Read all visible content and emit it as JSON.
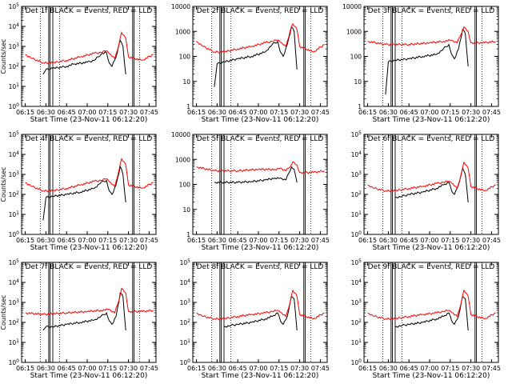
{
  "figure": {
    "ylabel": "Counts/sec",
    "xlabel_template": "Start Time (23-Nov-11 06:12:20)",
    "colors": {
      "events": "#000000",
      "lld": "#ff0000",
      "axes": "#000000"
    }
  },
  "chart_data": [
    {
      "type": "line",
      "title": "Det 1f BLACK = Events, RED = LLD",
      "xlabel": "Start Time (23-Nov-11 06:12:20)",
      "ylabel": "Counts/sec",
      "x_tick_labels": [
        "06:15",
        "06:30",
        "06:45",
        "07:00",
        "07:15",
        "07:30",
        "07:45"
      ],
      "y_tick_labels": [
        "10^0",
        "10^1",
        "10^2",
        "10^3",
        "10^4",
        "10^5"
      ],
      "ylim": [
        1,
        100000
      ],
      "yscale": "log",
      "series": [
        {
          "name": "Events",
          "color": "#000000",
          "x": [
            "06:28",
            "06:30",
            "06:32",
            "06:35",
            "06:45",
            "06:50",
            "07:00",
            "07:05",
            "07:10",
            "07:14",
            "07:16",
            "07:18",
            "07:21",
            "07:24",
            "07:26",
            "07:28"
          ],
          "y": [
            40,
            70,
            70,
            80,
            100,
            130,
            160,
            200,
            400,
            500,
            150,
            100,
            300,
            2000,
            1000,
            40
          ]
        },
        {
          "name": "LLD",
          "color": "#ff0000",
          "x": [
            "06:15",
            "06:20",
            "06:28",
            "06:35",
            "06:45",
            "06:55",
            "07:05",
            "07:10",
            "07:14",
            "07:17",
            "07:20",
            "07:23",
            "07:25",
            "07:28",
            "07:30",
            "07:40",
            "07:48"
          ],
          "y": [
            400,
            250,
            150,
            150,
            200,
            300,
            450,
            500,
            600,
            400,
            250,
            1200,
            5000,
            2500,
            300,
            200,
            400
          ]
        }
      ]
    },
    {
      "type": "line",
      "title": "Det 2f BLACK = Events, RED = LLD",
      "xlabel": "Start Time (23-Nov-11 06:12:20)",
      "ylabel": "Counts/sec",
      "x_tick_labels": [
        "06:15",
        "06:30",
        "06:45",
        "07:00",
        "07:15",
        "07:30",
        "07:45"
      ],
      "y_tick_labels": [
        "1",
        "10",
        "100",
        "1000",
        "10000"
      ],
      "ylim": [
        1,
        10000
      ],
      "yscale": "log",
      "series": [
        {
          "name": "Events",
          "color": "#000000",
          "x": [
            "06:28",
            "06:30",
            "06:35",
            "06:45",
            "06:55",
            "07:05",
            "07:10",
            "07:14",
            "07:16",
            "07:18",
            "07:21",
            "07:24",
            "07:26",
            "07:28"
          ],
          "y": [
            6,
            50,
            60,
            80,
            100,
            150,
            300,
            400,
            150,
            100,
            300,
            1500,
            1000,
            30
          ]
        },
        {
          "name": "LLD",
          "color": "#ff0000",
          "x": [
            "06:15",
            "06:20",
            "06:28",
            "06:35",
            "06:45",
            "06:55",
            "07:05",
            "07:10",
            "07:14",
            "07:17",
            "07:20",
            "07:23",
            "07:25",
            "07:28",
            "07:30",
            "07:40",
            "07:48"
          ],
          "y": [
            400,
            250,
            150,
            150,
            200,
            250,
            350,
            400,
            450,
            350,
            250,
            1000,
            2000,
            1200,
            250,
            150,
            300
          ]
        }
      ]
    },
    {
      "type": "line",
      "title": "Det 3f BLACK = Events, RED = LLD",
      "xlabel": "Start Time (23-Nov-11 06:12:20)",
      "ylabel": "Counts/sec",
      "x_tick_labels": [
        "06:15",
        "06:30",
        "06:45",
        "07:00",
        "07:15",
        "07:30",
        "07:45"
      ],
      "y_tick_labels": [
        "1",
        "10",
        "100",
        "1000",
        "10000"
      ],
      "ylim": [
        1,
        10000
      ],
      "yscale": "log",
      "series": [
        {
          "name": "Events",
          "color": "#000000",
          "x": [
            "06:28",
            "06:30",
            "06:35",
            "06:45",
            "06:55",
            "07:05",
            "07:10",
            "07:14",
            "07:16",
            "07:18",
            "07:21",
            "07:24",
            "07:26",
            "07:28"
          ],
          "y": [
            3,
            60,
            70,
            80,
            100,
            120,
            200,
            300,
            120,
            80,
            200,
            1200,
            800,
            40
          ]
        },
        {
          "name": "LLD",
          "color": "#ff0000",
          "x": [
            "06:15",
            "06:28",
            "06:45",
            "07:00",
            "07:10",
            "07:16",
            "07:20",
            "07:23",
            "07:25",
            "07:28",
            "07:30",
            "07:40",
            "07:48"
          ],
          "y": [
            400,
            300,
            300,
            350,
            400,
            450,
            350,
            800,
            1500,
            1000,
            350,
            350,
            400
          ]
        }
      ]
    },
    {
      "type": "line",
      "title": "Det 4f BLACK = Events, RED = LLD",
      "xlabel": "Start Time (23-Nov-11 06:12:20)",
      "ylabel": "Counts/sec",
      "x_tick_labels": [
        "06:15",
        "06:30",
        "06:45",
        "07:00",
        "07:15",
        "07:30",
        "07:45"
      ],
      "y_tick_labels": [
        "10^0",
        "10^1",
        "10^2",
        "10^3",
        "10^4",
        "10^5"
      ],
      "ylim": [
        1,
        100000
      ],
      "yscale": "log",
      "series": [
        {
          "name": "Events",
          "color": "#000000",
          "x": [
            "06:28",
            "06:30",
            "06:35",
            "06:45",
            "06:55",
            "07:05",
            "07:10",
            "07:14",
            "07:16",
            "07:18",
            "07:21",
            "07:24",
            "07:26",
            "07:28"
          ],
          "y": [
            5,
            70,
            80,
            100,
            130,
            200,
            400,
            500,
            150,
            100,
            300,
            2500,
            1000,
            40
          ]
        },
        {
          "name": "LLD",
          "color": "#ff0000",
          "x": [
            "06:15",
            "06:20",
            "06:28",
            "06:35",
            "06:45",
            "06:55",
            "07:05",
            "07:10",
            "07:14",
            "07:17",
            "07:20",
            "07:23",
            "07:25",
            "07:28",
            "07:30",
            "07:40",
            "07:48"
          ],
          "y": [
            400,
            250,
            150,
            150,
            200,
            300,
            450,
            500,
            600,
            400,
            250,
            1500,
            6000,
            3000,
            300,
            200,
            400
          ]
        }
      ]
    },
    {
      "type": "line",
      "title": "Det 5f BLACK = Events, RED = LLD",
      "xlabel": "Start Time (23-Nov-11 06:12:20)",
      "ylabel": "Counts/sec",
      "x_tick_labels": [
        "06:15",
        "06:30",
        "06:45",
        "07:00",
        "07:15",
        "07:30",
        "07:45"
      ],
      "y_tick_labels": [
        "1",
        "10",
        "100",
        "1000",
        "10000"
      ],
      "ylim": [
        1,
        10000
      ],
      "yscale": "log",
      "series": [
        {
          "name": "Events",
          "color": "#000000",
          "x": [
            "06:28",
            "06:45",
            "06:55",
            "07:05",
            "07:12",
            "07:16",
            "07:20",
            "07:24",
            "07:26",
            "07:28"
          ],
          "y": [
            120,
            120,
            130,
            150,
            180,
            180,
            150,
            500,
            400,
            120
          ]
        },
        {
          "name": "LLD",
          "color": "#ff0000",
          "x": [
            "06:15",
            "06:28",
            "06:45",
            "07:00",
            "07:12",
            "07:16",
            "07:20",
            "07:23",
            "07:25",
            "07:28",
            "07:30",
            "07:40",
            "07:48"
          ],
          "y": [
            500,
            350,
            350,
            400,
            400,
            450,
            350,
            500,
            800,
            600,
            300,
            300,
            350
          ]
        }
      ]
    },
    {
      "type": "line",
      "title": "Det 6f BLACK = Events, RED = LLD",
      "xlabel": "Start Time (23-Nov-11 06:12:20)",
      "ylabel": "Counts/sec",
      "x_tick_labels": [
        "06:15",
        "06:30",
        "06:45",
        "07:00",
        "07:15",
        "07:30",
        "07:45"
      ],
      "y_tick_labels": [
        "10^0",
        "10^1",
        "10^2",
        "10^3",
        "10^4",
        "10^5"
      ],
      "ylim": [
        1,
        100000
      ],
      "yscale": "log",
      "series": [
        {
          "name": "Events",
          "color": "#000000",
          "x": [
            "06:35",
            "06:40",
            "06:45",
            "06:55",
            "07:05",
            "07:10",
            "07:14",
            "07:16",
            "07:18",
            "07:21",
            "07:24",
            "07:26",
            "07:28"
          ],
          "y": [
            70,
            80,
            100,
            130,
            200,
            300,
            400,
            150,
            100,
            300,
            2000,
            1000,
            40
          ]
        },
        {
          "name": "LLD",
          "color": "#ff0000",
          "x": [
            "06:15",
            "06:20",
            "06:28",
            "06:35",
            "06:45",
            "06:55",
            "07:05",
            "07:10",
            "07:14",
            "07:17",
            "07:20",
            "07:23",
            "07:25",
            "07:28",
            "07:30",
            "07:40",
            "07:48"
          ],
          "y": [
            300,
            200,
            150,
            150,
            200,
            250,
            350,
            400,
            450,
            350,
            200,
            1000,
            4000,
            2000,
            250,
            150,
            300
          ]
        }
      ]
    },
    {
      "type": "line",
      "title": "Det 7f BLACK = Events, RED = LLD",
      "xlabel": "Start Time (23-Nov-11 06:12:20)",
      "ylabel": "Counts/sec",
      "x_tick_labels": [
        "06:15",
        "06:30",
        "06:45",
        "07:00",
        "07:15",
        "07:30",
        "07:45"
      ],
      "y_tick_labels": [
        "10^0",
        "10^1",
        "10^2",
        "10^3",
        "10^4",
        "10^5"
      ],
      "ylim": [
        1,
        100000
      ],
      "yscale": "log",
      "series": [
        {
          "name": "Events",
          "color": "#000000",
          "x": [
            "06:28",
            "06:30",
            "06:35",
            "06:45",
            "06:55",
            "07:05",
            "07:10",
            "07:14",
            "07:16",
            "07:18",
            "07:21",
            "07:24",
            "07:26",
            "07:28"
          ],
          "y": [
            40,
            60,
            60,
            80,
            100,
            130,
            200,
            300,
            120,
            80,
            200,
            3000,
            2000,
            40
          ]
        },
        {
          "name": "LLD",
          "color": "#ff0000",
          "x": [
            "06:15",
            "06:28",
            "06:45",
            "07:00",
            "07:10",
            "07:16",
            "07:20",
            "07:23",
            "07:25",
            "07:28",
            "07:30",
            "07:40",
            "07:48"
          ],
          "y": [
            300,
            250,
            300,
            350,
            400,
            450,
            300,
            1200,
            5000,
            3000,
            350,
            350,
            400
          ]
        }
      ]
    },
    {
      "type": "line",
      "title": "Det 8f BLACK = Events, RED = LLD",
      "xlabel": "Start Time (23-Nov-11 06:12:20)",
      "ylabel": "Counts/sec",
      "x_tick_labels": [
        "06:15",
        "06:30",
        "06:45",
        "07:00",
        "07:15",
        "07:30",
        "07:45"
      ],
      "y_tick_labels": [
        "10^0",
        "10^1",
        "10^2",
        "10^3",
        "10^4",
        "10^5"
      ],
      "ylim": [
        1,
        100000
      ],
      "yscale": "log",
      "series": [
        {
          "name": "Events",
          "color": "#000000",
          "x": [
            "06:35",
            "06:40",
            "06:45",
            "06:55",
            "07:05",
            "07:10",
            "07:14",
            "07:16",
            "07:18",
            "07:21",
            "07:24",
            "07:26",
            "07:28"
          ],
          "y": [
            60,
            70,
            80,
            100,
            150,
            200,
            300,
            120,
            80,
            200,
            2000,
            1500,
            40
          ]
        },
        {
          "name": "LLD",
          "color": "#ff0000",
          "x": [
            "06:15",
            "06:20",
            "06:28",
            "06:35",
            "06:45",
            "06:55",
            "07:05",
            "07:10",
            "07:14",
            "07:17",
            "07:20",
            "07:23",
            "07:25",
            "07:28",
            "07:30",
            "07:40",
            "07:48"
          ],
          "y": [
            300,
            200,
            150,
            150,
            200,
            250,
            300,
            350,
            400,
            300,
            200,
            1000,
            4000,
            2000,
            250,
            150,
            300
          ]
        }
      ]
    },
    {
      "type": "line",
      "title": "Det 9f BLACK = Events, RED = LLD",
      "xlabel": "Start Time (23-Nov-11 06:12:20)",
      "ylabel": "Counts/sec",
      "x_tick_labels": [
        "06:15",
        "06:30",
        "06:45",
        "07:00",
        "07:15",
        "07:30",
        "07:45"
      ],
      "y_tick_labels": [
        "10^0",
        "10^1",
        "10^2",
        "10^3",
        "10^4",
        "10^5"
      ],
      "ylim": [
        1,
        100000
      ],
      "yscale": "log",
      "series": [
        {
          "name": "Events",
          "color": "#000000",
          "x": [
            "06:35",
            "06:40",
            "06:45",
            "06:55",
            "07:05",
            "07:10",
            "07:14",
            "07:16",
            "07:18",
            "07:21",
            "07:24",
            "07:26",
            "07:28"
          ],
          "y": [
            60,
            70,
            80,
            100,
            150,
            200,
            300,
            120,
            80,
            200,
            2000,
            1500,
            40
          ]
        },
        {
          "name": "LLD",
          "color": "#ff0000",
          "x": [
            "06:15",
            "06:20",
            "06:28",
            "06:35",
            "06:45",
            "06:55",
            "07:05",
            "07:10",
            "07:14",
            "07:17",
            "07:20",
            "07:23",
            "07:25",
            "07:28",
            "07:30",
            "07:40",
            "07:48"
          ],
          "y": [
            300,
            200,
            150,
            150,
            200,
            250,
            300,
            350,
            400,
            300,
            200,
            1000,
            4000,
            2000,
            250,
            150,
            300
          ]
        }
      ]
    }
  ]
}
